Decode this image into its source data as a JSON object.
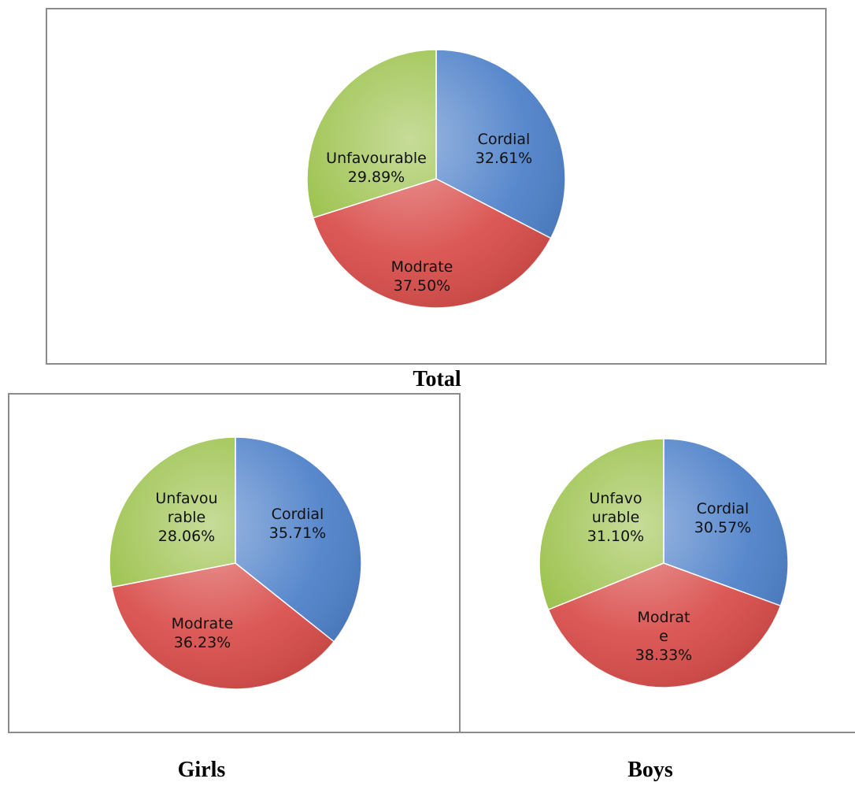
{
  "colors": {
    "Cordial": "#4a7ec8",
    "Modrate": "#d84a47",
    "Unfavourable": "#98bf45"
  },
  "chart_data": [
    {
      "type": "pie",
      "title": "Total",
      "slices": [
        {
          "label": "Cordial",
          "value": 32.61,
          "label_lines": [
            "Cordial",
            "32.61%"
          ]
        },
        {
          "label": "Modrate",
          "value": 37.5,
          "label_lines": [
            "Modrate",
            "37.50%"
          ]
        },
        {
          "label": "Unfavourable",
          "value": 29.89,
          "label_lines": [
            "Unfavourable",
            "29.89%"
          ]
        }
      ]
    },
    {
      "type": "pie",
      "title": "Girls",
      "slices": [
        {
          "label": "Cordial",
          "value": 35.71,
          "label_lines": [
            "Cordial",
            "35.71%"
          ]
        },
        {
          "label": "Modrate",
          "value": 36.23,
          "label_lines": [
            "Modrate",
            "36.23%"
          ]
        },
        {
          "label": "Unfavourable",
          "value": 28.06,
          "label_lines": [
            "Unfavou",
            "rable",
            "28.06%"
          ]
        }
      ]
    },
    {
      "type": "pie",
      "title": "Boys",
      "slices": [
        {
          "label": "Cordial",
          "value": 30.57,
          "label_lines": [
            "Cordial",
            "30.57%"
          ]
        },
        {
          "label": "Modrate",
          "value": 38.33,
          "label_lines": [
            "Modrat",
            "e",
            "38.33%"
          ]
        },
        {
          "label": "Unfavourable",
          "value": 31.1,
          "label_lines": [
            "Unfavo",
            "urable",
            "31.10%"
          ]
        }
      ]
    }
  ]
}
